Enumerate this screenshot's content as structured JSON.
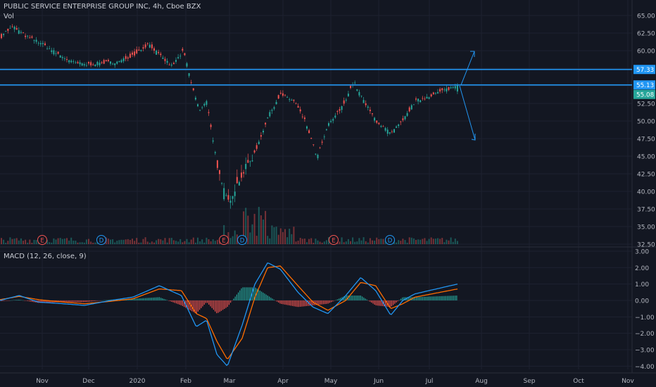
{
  "header": {
    "symbol_title": "PUBLIC SERVICE ENTERPRISE GROUP INC, 4h, Cboe BZX",
    "volume_label": "Vol"
  },
  "macd_panel": {
    "label": "MACD (12, 26, close, 9)"
  },
  "colors": {
    "background": "#131722",
    "up": "#26a69a",
    "down": "#ef5350",
    "support_line": "#2196f3",
    "macd_line": "#2196f3",
    "signal_line": "#ff6d00",
    "axis_text": "#b2b5be",
    "grid": "#1e2230",
    "earnings": "#ef5350",
    "dividend": "#2196f3"
  },
  "chart_data": [
    {
      "type": "candlestick",
      "title": "PUBLIC SERVICE ENTERPRISE GROUP INC, 4h, Cboe BZX",
      "x_labels": [
        "Nov",
        "Dec",
        "2020",
        "Feb",
        "Mar",
        "Apr",
        "May",
        "Jun",
        "Jul",
        "Aug",
        "Sep",
        "Oct",
        "Nov"
      ],
      "y_ticks": [
        65.0,
        62.5,
        60.0,
        57.5,
        55.0,
        52.5,
        50.0,
        47.5,
        45.0,
        42.5,
        40.0,
        37.5,
        35.0,
        32.5
      ],
      "ylim": [
        32.5,
        65.0
      ],
      "price_tags": [
        {
          "text": "57.33",
          "value": 57.33,
          "style": "line"
        },
        {
          "text": "55.13",
          "value": 55.13,
          "style": "line"
        },
        {
          "text": "55.08",
          "value": 55.08,
          "style": "last"
        }
      ],
      "horizontal_lines": [
        57.33,
        55.13
      ],
      "close_path": [
        [
          "Oct",
          61.6
        ],
        [
          "Oct",
          62.4
        ],
        [
          "Nov",
          63.4
        ],
        [
          "Nov",
          62.0
        ],
        [
          "Nov",
          61.2
        ],
        [
          "Dec",
          59.6
        ],
        [
          "Dec",
          58.4
        ],
        [
          "Dec",
          58.0
        ],
        [
          "2020",
          58.3
        ],
        [
          "2020",
          58.4
        ],
        [
          "2020",
          59.5
        ],
        [
          "Feb",
          61.0
        ],
        [
          "Feb",
          59.2
        ],
        [
          "Feb",
          57.8
        ],
        [
          "Feb",
          60.0
        ],
        [
          "Mar",
          54.5
        ],
        [
          "Mar",
          51.5
        ],
        [
          "Mar",
          52.8
        ],
        [
          "Mar",
          46.5
        ],
        [
          "Mar",
          41.0
        ],
        [
          "Mar",
          38.5
        ],
        [
          "Apr",
          42.5
        ],
        [
          "Apr",
          45.5
        ],
        [
          "Apr",
          50.5
        ],
        [
          "Apr",
          53.8
        ],
        [
          "May",
          52.8
        ],
        [
          "May",
          49.8
        ],
        [
          "May",
          44.8
        ],
        [
          "May",
          49.5
        ],
        [
          "Jun",
          52.0
        ],
        [
          "Jun",
          55.6
        ],
        [
          "Jun",
          52.5
        ],
        [
          "Jun",
          50.0
        ],
        [
          "Jul",
          48.2
        ],
        [
          "Jul",
          50.0
        ],
        [
          "Jul",
          52.8
        ],
        [
          "Jul",
          55.08
        ]
      ],
      "volume_markers": [
        {
          "text": "E",
          "kind": "earnings",
          "at": "Nov"
        },
        {
          "text": "D",
          "kind": "dividend",
          "at": "Dec"
        },
        {
          "text": "E",
          "kind": "earnings",
          "at": "Mar"
        },
        {
          "text": "D",
          "kind": "dividend",
          "at": "Mar"
        },
        {
          "text": "E",
          "kind": "earnings",
          "at": "May"
        },
        {
          "text": "D",
          "kind": "dividend",
          "at": "Jun"
        }
      ],
      "annotations": [
        "breakout-up-arrow",
        "breakdown-down-arrow"
      ]
    },
    {
      "type": "line",
      "title": "MACD (12, 26, close, 9)",
      "y_ticks": [
        3.0,
        2.0,
        1.0,
        0.0,
        -1.0,
        -2.0,
        -3.0,
        -4.0
      ],
      "y_tick_labels": [
        "3.00",
        "2.00",
        "1.00",
        "0.00",
        "−1.00",
        "−2.00",
        "−3.00",
        "−4.00"
      ],
      "ylim": [
        -4.2,
        3.0
      ],
      "series": [
        {
          "name": "MACD",
          "points": [
            [
              "Oct",
              0.0
            ],
            [
              "Nov",
              0.3
            ],
            [
              "Nov",
              -0.1
            ],
            [
              "Dec",
              -0.2
            ],
            [
              "Dec",
              -0.3
            ],
            [
              "2020",
              0.0
            ],
            [
              "2020",
              0.2
            ],
            [
              "Feb",
              0.9
            ],
            [
              "Feb",
              0.3
            ],
            [
              "Mar",
              -1.6
            ],
            [
              "Mar",
              -1.2
            ],
            [
              "Mar",
              -3.3
            ],
            [
              "Mar",
              -4.0
            ],
            [
              "Apr",
              -1.5
            ],
            [
              "Apr",
              1.0
            ],
            [
              "Apr",
              2.3
            ],
            [
              "Apr",
              1.9
            ],
            [
              "May",
              0.5
            ],
            [
              "May",
              -0.4
            ],
            [
              "May",
              -0.8
            ],
            [
              "Jun",
              0.3
            ],
            [
              "Jun",
              1.4
            ],
            [
              "Jun",
              0.6
            ],
            [
              "Jul",
              -0.9
            ],
            [
              "Jul",
              0.0
            ],
            [
              "Jul",
              0.4
            ],
            [
              "Jul",
              1.0
            ]
          ]
        },
        {
          "name": "Signal",
          "points": [
            [
              "Oct",
              0.05
            ],
            [
              "Nov",
              0.25
            ],
            [
              "Nov",
              0.05
            ],
            [
              "Dec",
              -0.1
            ],
            [
              "Dec",
              -0.2
            ],
            [
              "2020",
              -0.05
            ],
            [
              "2020",
              0.1
            ],
            [
              "Feb",
              0.7
            ],
            [
              "Feb",
              0.6
            ],
            [
              "Mar",
              -0.8
            ],
            [
              "Mar",
              -1.1
            ],
            [
              "Mar",
              -2.5
            ],
            [
              "Mar",
              -3.6
            ],
            [
              "Apr",
              -2.3
            ],
            [
              "Apr",
              0.2
            ],
            [
              "Apr",
              2.0
            ],
            [
              "Apr",
              2.1
            ],
            [
              "May",
              0.9
            ],
            [
              "May",
              -0.1
            ],
            [
              "May",
              -0.6
            ],
            [
              "Jun",
              0.0
            ],
            [
              "Jun",
              1.1
            ],
            [
              "Jun",
              0.9
            ],
            [
              "Jul",
              -0.5
            ],
            [
              "Jul",
              -0.2
            ],
            [
              "Jul",
              0.2
            ],
            [
              "Jul",
              0.7
            ]
          ]
        }
      ]
    }
  ]
}
